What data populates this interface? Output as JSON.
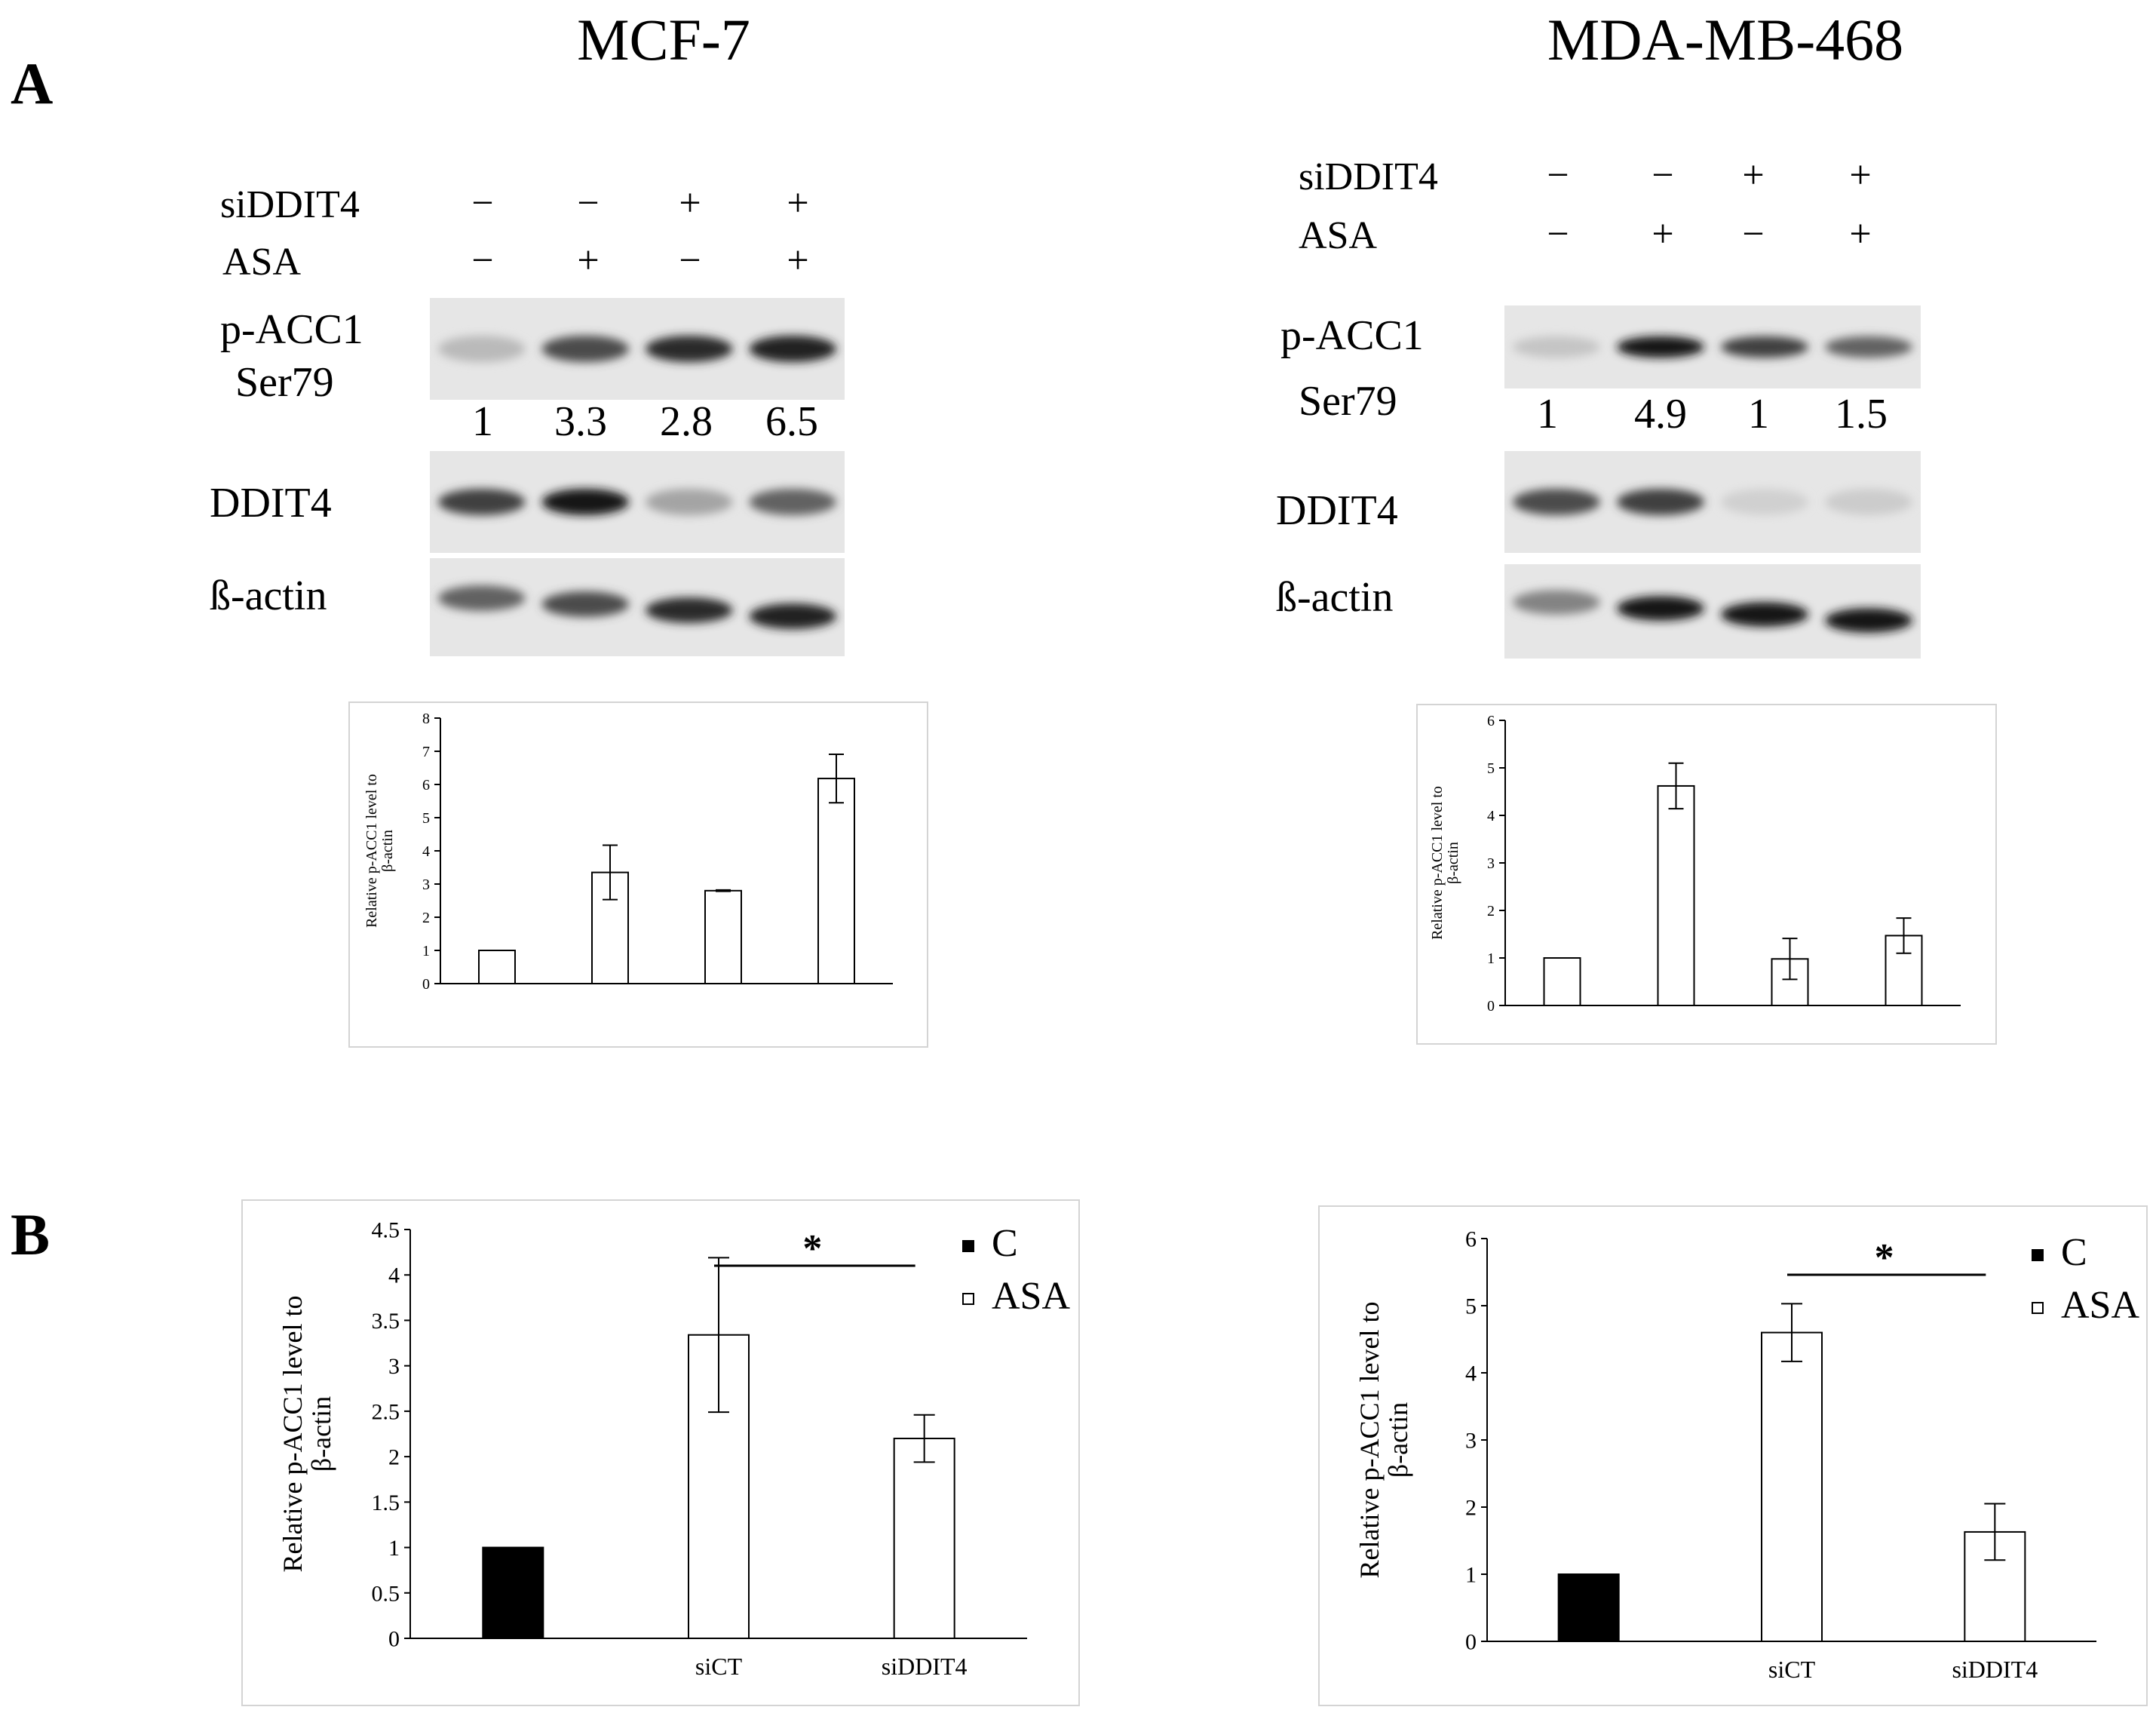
{
  "panels": {
    "a": "A",
    "b": "B"
  },
  "cell_lines": [
    "MCF-7",
    "MDA-MB-468"
  ],
  "blot": {
    "row_labels": [
      "siDDIT4",
      "ASA"
    ],
    "signs": [
      {
        "siDDIT4": [
          "−",
          "−",
          "+",
          "+"
        ],
        "ASA": [
          "−",
          "+",
          "−",
          "+"
        ]
      },
      {
        "siDDIT4": [
          "−",
          "−",
          "+",
          "+"
        ],
        "ASA": [
          "−",
          "+",
          "−",
          "+"
        ]
      }
    ],
    "band_labels": {
      "pacc1_line1": "p-ACC1",
      "pacc1_line2": "Ser79",
      "ddit4": "DDIT4",
      "actin": "ß-actin"
    },
    "quantification": [
      [
        "1",
        "3.3",
        "2.8",
        "6.5"
      ],
      [
        "1",
        "4.9",
        "1",
        "1.5"
      ]
    ],
    "intensity": {
      "pacc1": [
        [
          0.2,
          0.7,
          0.85,
          0.9
        ],
        [
          0.15,
          0.95,
          0.75,
          0.6
        ]
      ],
      "ddit4": [
        [
          0.75,
          0.95,
          0.3,
          0.6
        ],
        [
          0.7,
          0.75,
          0.1,
          0.12
        ]
      ],
      "actin": [
        [
          0.6,
          0.7,
          0.85,
          0.9
        ],
        [
          0.45,
          0.95,
          0.95,
          0.95
        ]
      ]
    }
  },
  "chart_data": [
    {
      "type": "bar",
      "panel": "A",
      "cell_line": "MCF-7",
      "categories": [
        "",
        "",
        "",
        ""
      ],
      "values": [
        1,
        3.35,
        2.8,
        6.18
      ],
      "error": [
        0,
        0.82,
        0.02,
        0.73
      ],
      "ylabel": "Relative p-ACC1 level to β-actin",
      "ylim": [
        0,
        8
      ],
      "yticks": [
        0,
        1,
        2,
        3,
        4,
        5,
        6,
        7,
        8
      ],
      "bar_color": "#ffffff"
    },
    {
      "type": "bar",
      "panel": "A",
      "cell_line": "MDA-MB-468",
      "categories": [
        "",
        "",
        "",
        ""
      ],
      "values": [
        1,
        4.62,
        0.98,
        1.47
      ],
      "error": [
        0,
        0.48,
        0.43,
        0.37
      ],
      "ylabel": "Relative p-ACC1 level to β-actin",
      "ylim": [
        0,
        6
      ],
      "yticks": [
        0,
        1,
        2,
        3,
        4,
        5,
        6
      ],
      "bar_color": "#ffffff"
    },
    {
      "type": "bar",
      "panel": "B",
      "cell_line": "MCF-7",
      "categories": [
        "",
        "siCT",
        "siDDIT4"
      ],
      "series": [
        {
          "name": "C",
          "color": "#000000",
          "values": [
            1,
            null,
            null
          ],
          "error": [
            0,
            null,
            null
          ]
        },
        {
          "name": "ASA",
          "color": "#ffffff",
          "values": [
            null,
            3.34,
            2.2
          ],
          "error": [
            null,
            0.85,
            0.26
          ]
        }
      ],
      "ylabel": "Relative p-ACC1 level to β-actin",
      "ylim": [
        0,
        4.5
      ],
      "yticks": [
        "0",
        "0.5",
        "1",
        "1.5",
        "2",
        "2.5",
        "3",
        "3.5",
        "4",
        "4.5"
      ],
      "annotation": "*",
      "legend": "top-right"
    },
    {
      "type": "bar",
      "panel": "B",
      "cell_line": "MDA-MB-468",
      "categories": [
        "",
        "siCT",
        "siDDIT4"
      ],
      "series": [
        {
          "name": "C",
          "color": "#000000",
          "values": [
            1,
            null,
            null
          ],
          "error": [
            0,
            null,
            null
          ]
        },
        {
          "name": "ASA",
          "color": "#ffffff",
          "values": [
            null,
            4.6,
            1.63
          ],
          "error": [
            null,
            0.43,
            0.42
          ]
        }
      ],
      "ylabel": "Relative p-ACC1 level to β-actin",
      "ylim": [
        0,
        6
      ],
      "yticks": [
        "0",
        "1",
        "2",
        "3",
        "4",
        "5",
        "6"
      ],
      "annotation": "*",
      "legend": "top-right"
    }
  ]
}
